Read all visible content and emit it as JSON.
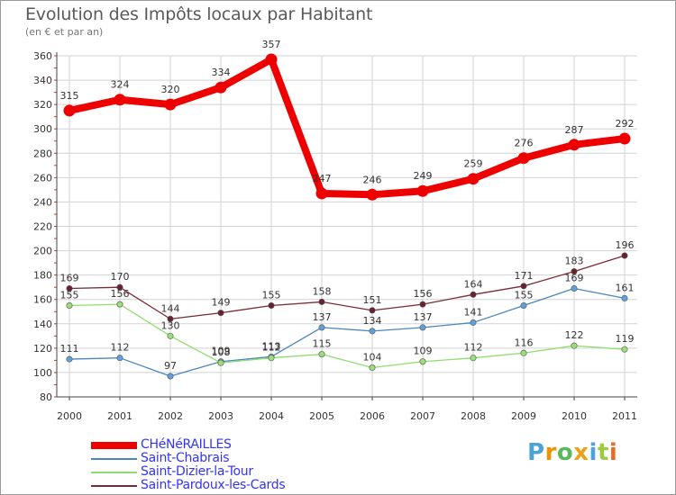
{
  "title": "Evolution des Impôts locaux par Habitant",
  "subtitle": "(en € et par an)",
  "chart_data": {
    "type": "line",
    "x": [
      "2000",
      "2001",
      "2002",
      "2003",
      "2004",
      "2005",
      "2006",
      "2007",
      "2008",
      "2009",
      "2010",
      "2011"
    ],
    "ylim": [
      80,
      360
    ],
    "y_ticks": [
      "80",
      "100",
      "120",
      "140",
      "160",
      "180",
      "200",
      "220",
      "240",
      "260",
      "280",
      "300",
      "320",
      "340",
      "360"
    ],
    "grid": "horizontal and vertical",
    "legend_position": "bottom-left",
    "series": [
      {
        "name": "Saint-Chabrais",
        "color": "#4a86c0",
        "marker_color": "#5fa1dd",
        "values": [
          111,
          112,
          97,
          109,
          113,
          137,
          134,
          137,
          141,
          155,
          169,
          161
        ]
      },
      {
        "name": "Saint-Dizier-la-Tour",
        "color": "#8edd6e",
        "marker_color": "#9ae07a",
        "values": [
          155,
          156,
          130,
          108,
          112,
          115,
          104,
          109,
          112,
          116,
          122,
          119
        ]
      },
      {
        "name": "Saint-Pardoux-les-Cards",
        "color": "#7a2a35",
        "marker_color": "#6b2030",
        "values": [
          169,
          170,
          144,
          149,
          155,
          158,
          151,
          156,
          164,
          171,
          183,
          196
        ]
      },
      {
        "name": "CHéNéRAILLES",
        "color": "#ee0000",
        "marker_color": "#ee0000",
        "values": [
          315,
          324,
          320,
          334,
          357,
          247,
          246,
          249,
          259,
          276,
          287,
          292
        ]
      }
    ]
  },
  "legend": [
    {
      "label": "CHéNéRAILLES",
      "color": "#ee0000",
      "text_color": "#3333ff"
    },
    {
      "label": "Saint-Chabrais",
      "color": "#4a86c0",
      "text_color": "#3333ff"
    },
    {
      "label": "Saint-Dizier-la-Tour",
      "color": "#8edd6e",
      "text_color": "#3333ff"
    },
    {
      "label": "Saint-Pardoux-les-Cards",
      "color": "#7a2a35",
      "text_color": "#3333ff"
    }
  ],
  "logo": {
    "letters": [
      "P",
      "r",
      "o",
      "x",
      "i",
      "t",
      "i"
    ],
    "colors": [
      "#4da3d8",
      "#f29100",
      "#5cb85c",
      "#e8a317",
      "#4da3d8",
      "#9ccc3c",
      "#e86a2c"
    ]
  },
  "colors": {
    "grid": "#d2d2d2",
    "axis": "#444444",
    "tick_marks": "#cc3333",
    "label": "#333333"
  }
}
